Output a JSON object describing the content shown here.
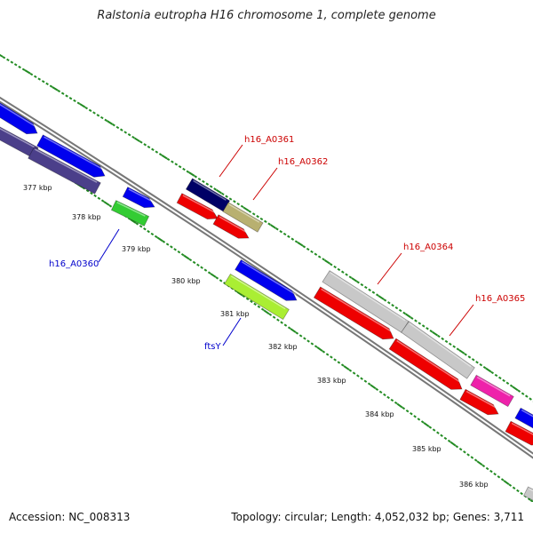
{
  "title": "Ralstonia eutropha H16 chromosome 1, complete genome",
  "footer": {
    "accession": "Accession: NC_008313",
    "summary": "Topology: circular; Length: 4,052,032 bp; Genes: 3,711"
  },
  "ticks": [
    "377 kbp",
    "378 kbp",
    "379 kbp",
    "380 kbp",
    "381 kbp",
    "382 kbp",
    "383 kbp",
    "384 kbp",
    "385 kbp",
    "386 kbp"
  ],
  "gene_labels": [
    {
      "id": "lbl-a0361",
      "text": "h16_A0361",
      "color": "#cc0000"
    },
    {
      "id": "lbl-a0362",
      "text": "h16_A0362",
      "color": "#cc0000"
    },
    {
      "id": "lbl-a0364",
      "text": "h16_A0364",
      "color": "#cc0000"
    },
    {
      "id": "lbl-a0365",
      "text": "h16_A0365",
      "color": "#cc0000"
    },
    {
      "id": "lbl-a0360",
      "text": "h16_A0360",
      "color": "#0000cc"
    },
    {
      "id": "lbl-ftsy",
      "text": "ftsY",
      "color": "#0000cc"
    }
  ],
  "colors": {
    "backbone": "#808080",
    "dots": "#228b22",
    "blue": "#0000ee",
    "slate": "#4b3f8a",
    "navy": "#000066",
    "red": "#ee0000",
    "green": "#33cc33",
    "lime": "#aaee33",
    "khaki": "#b8b070",
    "lightgray": "#c8c8c8",
    "magenta": "#ee22aa"
  }
}
